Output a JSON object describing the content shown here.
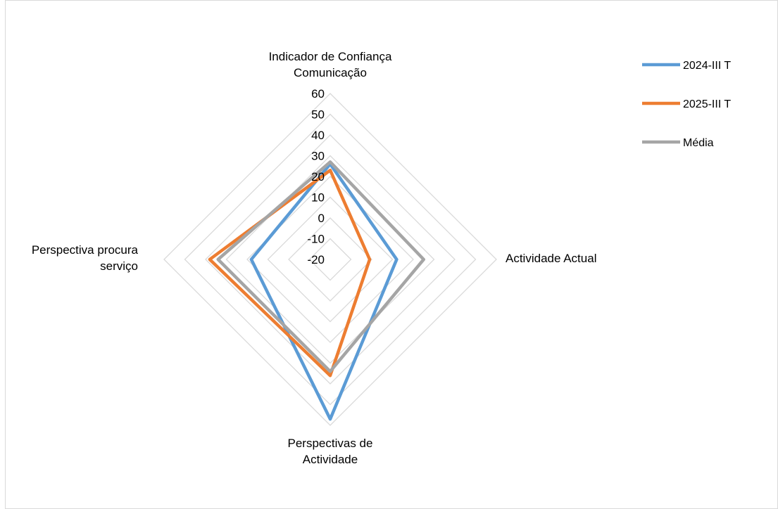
{
  "chart_data": {
    "type": "radar",
    "title": "",
    "axes": [
      [
        "Indicador de Confiança",
        "Comunicação"
      ],
      [
        "Actividade Actual"
      ],
      [
        "Perspectivas de",
        "Actividade"
      ],
      [
        "Perspectiva procura",
        "serviço"
      ]
    ],
    "rlim": [
      -20,
      60
    ],
    "ticks": [
      60,
      50,
      40,
      30,
      20,
      10,
      0,
      -10,
      -20
    ],
    "grid": true,
    "legend_position": "right",
    "series": [
      {
        "name": "2024-III T",
        "color": "#5b9bd5",
        "values": [
          26,
          12,
          57,
          18
        ]
      },
      {
        "name": "2025-III T",
        "color": "#ed7d31",
        "values": [
          23,
          -1,
          36,
          38
        ]
      },
      {
        "name": "Média",
        "color": "#a5a5a5",
        "values": [
          27,
          25,
          34,
          34
        ]
      }
    ]
  }
}
